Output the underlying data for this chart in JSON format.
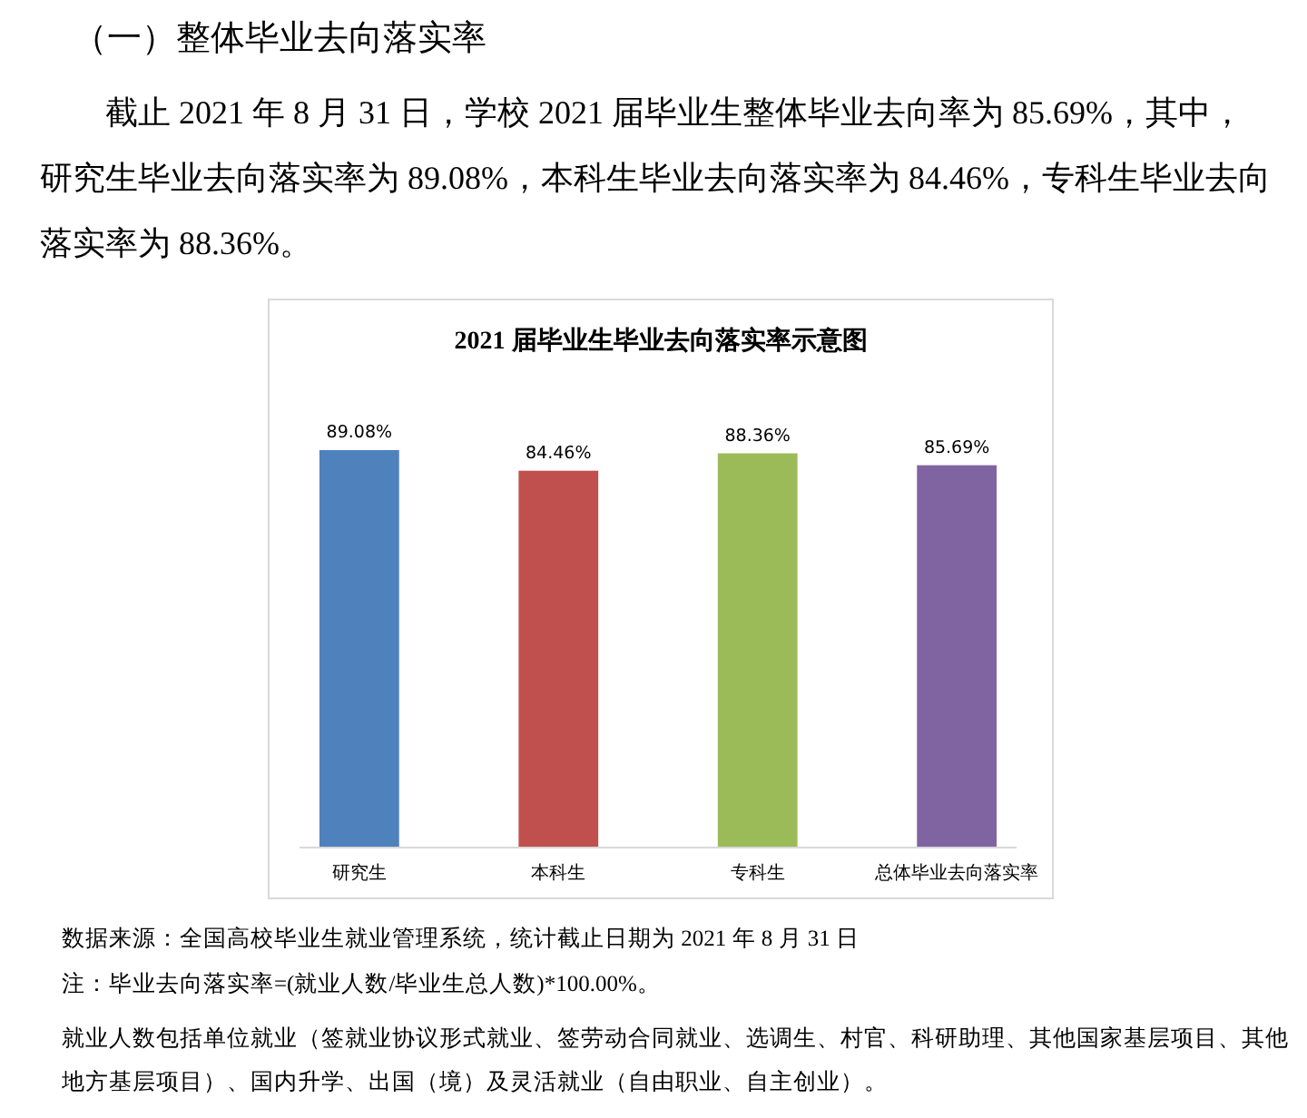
{
  "chart_data": {
    "type": "bar",
    "title": "2021 届毕业生毕业去向落实率示意图",
    "categories": [
      "研究生",
      "本科生",
      "专科生",
      "总体毕业去向落实率"
    ],
    "values": [
      89.08,
      84.46,
      88.36,
      85.69
    ],
    "colors": [
      "#4f81bd",
      "#c0504d",
      "#9bbb59",
      "#8064a2"
    ],
    "value_labels": [
      "89.08%",
      "84.46%",
      "88.36%",
      "85.69%"
    ],
    "tick_labels": "x",
    "annotations": [
      "（一）整体毕业去向落实率",
      "截止 2021 年 8 月 31 日，学校 2021 届毕业生整体毕业去向率为 85.69%，其中，研究生毕业去向落实率为 89.08%，本科生毕业去向落实率为 84.46%，专科生毕业去向落实率为 88.36%。",
      "数据来源：全国高校毕业生就业管理系统，统计截止日期为 2021 年 8 月 31 日",
      "注：毕业去向落实率=(就业人数/毕业生总人数)*100.00%。",
      "就业人数包括单位就业（签就业协议形式就业、签劳动合同就业、选调生、村官、科研助理、其他国家基层项目、其他地方基层项目）、国内升学、出国（境）及灵活就业（自由职业、自主创业）。"
    ]
  }
}
